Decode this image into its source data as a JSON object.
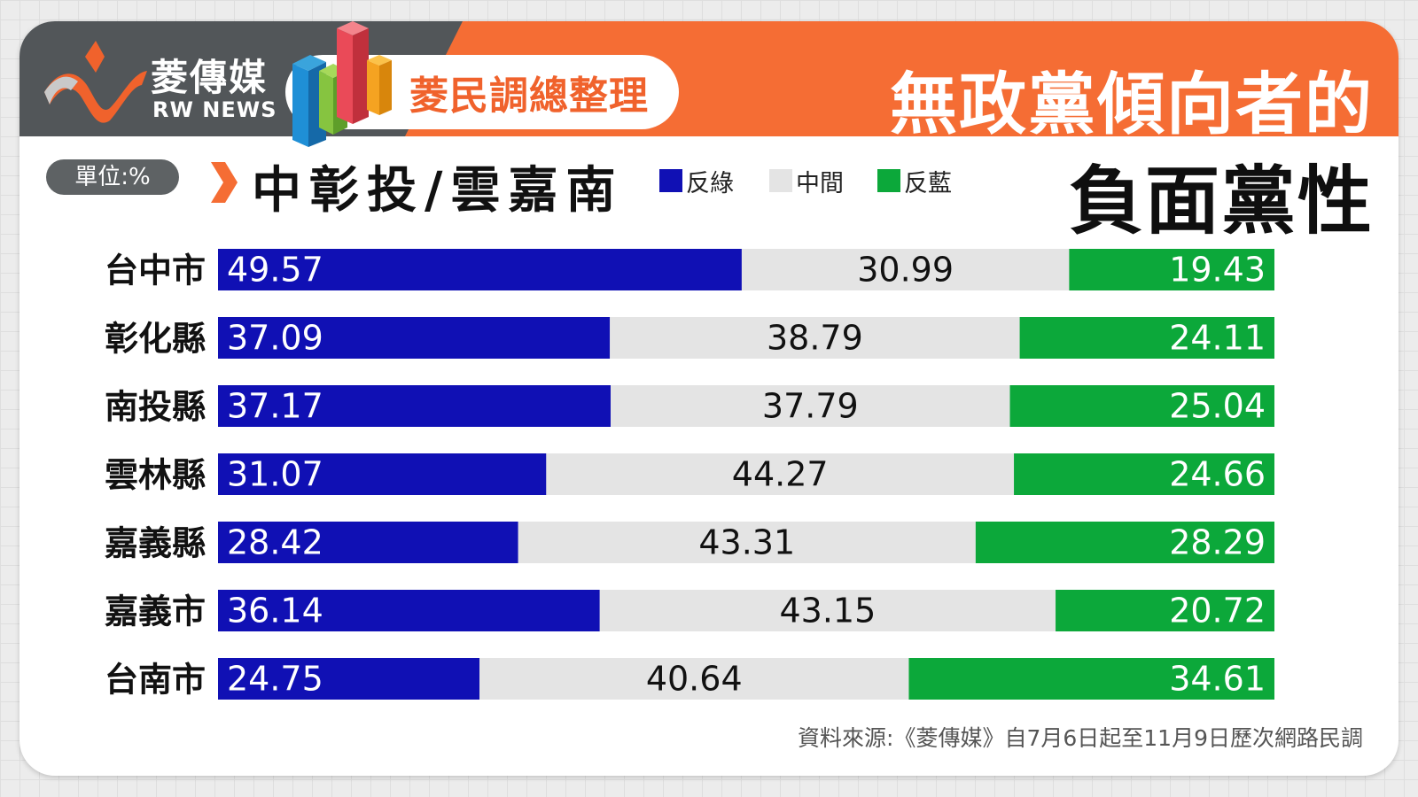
{
  "brand": {
    "name_cn": "菱傳媒",
    "name_en": "RW NEWS"
  },
  "header": {
    "badge": "菱民調總整理",
    "title_line1": "無政黨傾向者的",
    "title_line2": "負面黨性"
  },
  "unit_label": "單位:%",
  "region_label": "中彰投/雲嘉南",
  "source": "資料來源:《菱傳媒》自7月6日起至11月9日歷次網路民調",
  "colors": {
    "header_orange": "#f56d34",
    "header_dark": "#525659",
    "anti_green": "#1010b4",
    "middle": "#e4e4e4",
    "anti_blue": "#0ca83a"
  },
  "chart_data": {
    "type": "bar",
    "stacked": true,
    "orientation": "horizontal",
    "normalized_percent": true,
    "categories": [
      "台中市",
      "彰化縣",
      "南投縣",
      "雲林縣",
      "嘉義縣",
      "嘉義市",
      "台南市"
    ],
    "series": [
      {
        "name": "反綠",
        "color": "#1010b4",
        "values": [
          49.57,
          37.09,
          37.17,
          31.07,
          28.42,
          36.14,
          24.75
        ]
      },
      {
        "name": "中間",
        "color": "#e4e4e4",
        "values": [
          30.99,
          38.79,
          37.79,
          44.27,
          43.31,
          43.15,
          40.64
        ]
      },
      {
        "name": "反藍",
        "color": "#0ca83a",
        "values": [
          19.43,
          24.11,
          25.04,
          24.66,
          28.29,
          20.72,
          34.61
        ]
      }
    ],
    "legend_position": "top"
  }
}
